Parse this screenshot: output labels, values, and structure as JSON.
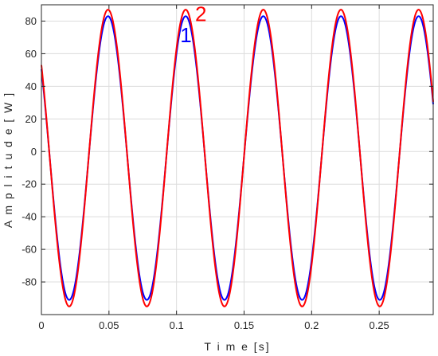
{
  "chart_data": {
    "type": "line",
    "xlabel": "T i m e [s]",
    "ylabel": "A m p l i t u d e [ W ]",
    "xlim": [
      0,
      0.29
    ],
    "ylim": [
      -100,
      90
    ],
    "xticks": [
      0,
      0.05,
      0.1,
      0.15,
      0.2,
      0.25
    ],
    "xtick_labels": [
      "0",
      "0.05",
      "0.1",
      "0.15",
      "0.2",
      "0.25"
    ],
    "yticks": [
      -80,
      -60,
      -40,
      -20,
      0,
      20,
      40,
      60,
      80
    ],
    "ytick_labels": [
      "-80",
      "-60",
      "-40",
      "-20",
      "0",
      "20",
      "40",
      "60",
      "80"
    ],
    "grid": true,
    "series": [
      {
        "name": "1",
        "color": "#0000ff",
        "function": "sine",
        "frequency_hz": 17.4,
        "max": 83,
        "min": -91,
        "first_peak_x": 0.0493,
        "start_value": 57,
        "x": [
          0,
          0.0206,
          0.0493,
          0.0781,
          0.1068,
          0.1356,
          0.1643,
          0.1931,
          0.2218,
          0.2506,
          0.2793
        ],
        "y": [
          57,
          -91,
          83,
          -91,
          83,
          -91,
          83,
          -91,
          83,
          -91,
          83
        ]
      },
      {
        "name": "2",
        "color": "#ff0000",
        "function": "sine",
        "frequency_hz": 17.4,
        "max": 87,
        "min": -95,
        "first_peak_x": 0.0493,
        "start_value": 57,
        "x": [
          0,
          0.0206,
          0.0493,
          0.0781,
          0.1068,
          0.1356,
          0.1643,
          0.1931,
          0.2218,
          0.2506,
          0.2793
        ],
        "y": [
          57,
          -95,
          87,
          -95,
          87,
          -95,
          87,
          -95,
          87,
          -95,
          87
        ]
      }
    ],
    "annotations": [
      {
        "text": "1",
        "color": "#0000ff",
        "x": 0.107,
        "y": 67
      },
      {
        "text": "2",
        "color": "#ff0000",
        "x": 0.118,
        "y": 80
      }
    ]
  }
}
